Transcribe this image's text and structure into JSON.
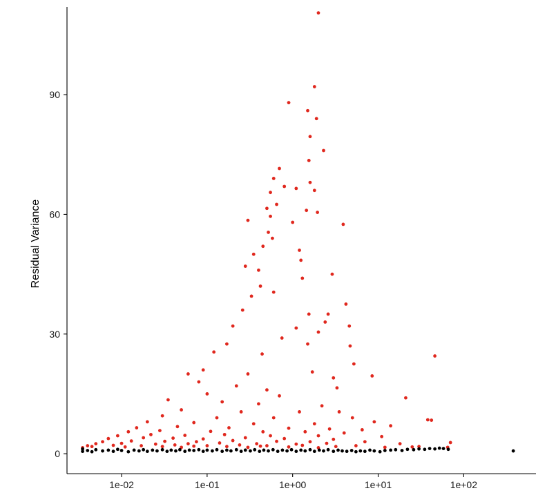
{
  "chart_data": {
    "type": "scatter",
    "title": "",
    "xlabel": "",
    "ylabel": "Residual Variance",
    "x_scale": "log10",
    "xlim": [
      0.0023,
      700
    ],
    "ylim": [
      -5,
      112
    ],
    "x_ticks": [
      0.01,
      0.1,
      1,
      10,
      100
    ],
    "x_tick_labels": [
      "1e-02",
      "1e-01",
      "1e+00",
      "1e+01",
      "1e+02"
    ],
    "y_ticks": [
      0,
      30,
      60,
      90
    ],
    "y_tick_labels": [
      "0",
      "30",
      "60",
      "90"
    ],
    "grid": false,
    "legend": "none",
    "colors": {
      "variable": "#e0281e",
      "non_variable": "#000000"
    },
    "series": [
      {
        "color": "#e0281e",
        "points": [
          [
            2.0,
            110.5
          ],
          [
            1.8,
            92.0
          ],
          [
            0.9,
            88.0
          ],
          [
            1.5,
            86.0
          ],
          [
            1.9,
            84.0
          ],
          [
            1.6,
            79.5
          ],
          [
            2.3,
            76.0
          ],
          [
            1.55,
            73.5
          ],
          [
            0.7,
            71.5
          ],
          [
            0.6,
            69.0
          ],
          [
            1.6,
            68.0
          ],
          [
            0.8,
            67.0
          ],
          [
            1.1,
            66.5
          ],
          [
            1.8,
            66.0
          ],
          [
            0.55,
            65.5
          ],
          [
            0.65,
            62.5
          ],
          [
            0.5,
            61.5
          ],
          [
            1.95,
            60.5
          ],
          [
            1.45,
            61.0
          ],
          [
            0.55,
            59.5
          ],
          [
            0.3,
            58.5
          ],
          [
            1.0,
            58.0
          ],
          [
            3.9,
            57.5
          ],
          [
            0.52,
            55.5
          ],
          [
            0.58,
            54.0
          ],
          [
            0.45,
            52.0
          ],
          [
            1.2,
            51.0
          ],
          [
            0.35,
            50.0
          ],
          [
            1.25,
            48.5
          ],
          [
            0.28,
            47.0
          ],
          [
            0.4,
            46.0
          ],
          [
            2.9,
            45.0
          ],
          [
            1.3,
            44.0
          ],
          [
            0.6,
            40.5
          ],
          [
            0.42,
            42.0
          ],
          [
            0.33,
            39.5
          ],
          [
            0.26,
            36.0
          ],
          [
            4.2,
            37.5
          ],
          [
            1.55,
            35.0
          ],
          [
            2.6,
            35.0
          ],
          [
            2.4,
            33.0
          ],
          [
            4.6,
            32.0
          ],
          [
            0.2,
            32.0
          ],
          [
            1.1,
            31.5
          ],
          [
            2.0,
            30.5
          ],
          [
            0.75,
            29.0
          ],
          [
            0.17,
            27.5
          ],
          [
            1.5,
            27.5
          ],
          [
            4.7,
            27.0
          ],
          [
            0.12,
            25.5
          ],
          [
            0.44,
            25.0
          ],
          [
            46.0,
            24.5
          ],
          [
            5.2,
            22.5
          ],
          [
            0.09,
            21.0
          ],
          [
            0.06,
            20.0
          ],
          [
            0.3,
            20.0
          ],
          [
            1.7,
            20.5
          ],
          [
            8.5,
            19.5
          ],
          [
            3.0,
            19.0
          ],
          [
            0.08,
            18.0
          ],
          [
            0.22,
            17.0
          ],
          [
            0.5,
            16.0
          ],
          [
            3.3,
            16.5
          ],
          [
            0.1,
            15.0
          ],
          [
            0.7,
            14.5
          ],
          [
            21.0,
            14.0
          ],
          [
            0.035,
            13.5
          ],
          [
            0.15,
            13.0
          ],
          [
            0.4,
            12.5
          ],
          [
            2.2,
            12.0
          ],
          [
            0.05,
            11.0
          ],
          [
            0.25,
            10.5
          ],
          [
            1.2,
            10.5
          ],
          [
            3.5,
            10.5
          ],
          [
            0.03,
            9.5
          ],
          [
            0.13,
            9.0
          ],
          [
            0.6,
            9.0
          ],
          [
            5.0,
            9.0
          ],
          [
            38.0,
            8.5
          ],
          [
            42.0,
            8.4
          ],
          [
            9.0,
            8.0
          ],
          [
            0.02,
            8.0
          ],
          [
            0.07,
            7.8
          ],
          [
            0.35,
            7.5
          ],
          [
            1.8,
            7.5
          ],
          [
            14.0,
            7.0
          ],
          [
            0.015,
            6.5
          ],
          [
            0.045,
            6.8
          ],
          [
            0.18,
            6.5
          ],
          [
            0.9,
            6.4
          ],
          [
            2.7,
            6.2
          ],
          [
            6.5,
            6.0
          ],
          [
            0.012,
            5.5
          ],
          [
            0.028,
            5.8
          ],
          [
            0.11,
            5.6
          ],
          [
            0.45,
            5.5
          ],
          [
            1.4,
            5.5
          ],
          [
            4.0,
            5.2
          ],
          [
            0.009,
            4.5
          ],
          [
            0.022,
            4.8
          ],
          [
            0.055,
            4.6
          ],
          [
            0.16,
            4.8
          ],
          [
            0.55,
            4.5
          ],
          [
            2.0,
            4.5
          ],
          [
            11.0,
            4.3
          ],
          [
            0.007,
            3.8
          ],
          [
            0.018,
            4.0
          ],
          [
            0.04,
            3.9
          ],
          [
            0.09,
            3.7
          ],
          [
            0.28,
            4.0
          ],
          [
            0.8,
            3.8
          ],
          [
            3.0,
            3.6
          ],
          [
            0.006,
            3.0
          ],
          [
            0.013,
            3.2
          ],
          [
            0.032,
            3.1
          ],
          [
            0.075,
            3.0
          ],
          [
            0.2,
            3.3
          ],
          [
            0.65,
            3.1
          ],
          [
            1.6,
            3.0
          ],
          [
            7.0,
            3.0
          ],
          [
            0.005,
            2.5
          ],
          [
            0.01,
            2.6
          ],
          [
            0.025,
            2.4
          ],
          [
            0.06,
            2.5
          ],
          [
            0.14,
            2.7
          ],
          [
            0.38,
            2.5
          ],
          [
            1.1,
            2.4
          ],
          [
            2.5,
            2.6
          ],
          [
            18.0,
            2.5
          ],
          [
            0.004,
            2.0
          ],
          [
            0.008,
            2.1
          ],
          [
            0.017,
            2.0
          ],
          [
            0.042,
            2.2
          ],
          [
            0.1,
            2.0
          ],
          [
            0.24,
            2.2
          ],
          [
            0.5,
            2.0
          ],
          [
            1.3,
            2.1
          ],
          [
            5.5,
            2.0
          ],
          [
            0.0045,
            1.8
          ],
          [
            0.011,
            1.7
          ],
          [
            0.03,
            1.8
          ],
          [
            0.07,
            1.9
          ],
          [
            0.17,
            1.8
          ],
          [
            0.42,
            1.9
          ],
          [
            0.9,
            1.7
          ],
          [
            3.2,
            1.8
          ],
          [
            30.0,
            1.8
          ],
          [
            65.0,
            1.6
          ],
          [
            70.0,
            2.8
          ],
          [
            0.0035,
            1.5
          ],
          [
            0.05,
            1.6
          ],
          [
            0.3,
            1.6
          ],
          [
            2.0,
            1.5
          ],
          [
            12.0,
            1.6
          ],
          [
            25.0,
            1.7
          ]
        ]
      },
      {
        "color": "#000000",
        "points": [
          [
            0.0035,
            0.6
          ],
          [
            0.0035,
            1.2
          ],
          [
            0.004,
            0.8
          ],
          [
            0.0045,
            0.5
          ],
          [
            0.005,
            1.0
          ],
          [
            0.006,
            0.7
          ],
          [
            0.007,
            0.9
          ],
          [
            0.008,
            0.6
          ],
          [
            0.009,
            1.1
          ],
          [
            0.01,
            0.8
          ],
          [
            0.012,
            0.5
          ],
          [
            0.014,
            0.9
          ],
          [
            0.016,
            0.7
          ],
          [
            0.018,
            1.0
          ],
          [
            0.02,
            0.6
          ],
          [
            0.023,
            0.9
          ],
          [
            0.026,
            0.7
          ],
          [
            0.03,
            1.0
          ],
          [
            0.034,
            0.6
          ],
          [
            0.038,
            0.9
          ],
          [
            0.043,
            0.7
          ],
          [
            0.048,
            1.0
          ],
          [
            0.055,
            0.6
          ],
          [
            0.062,
            0.9
          ],
          [
            0.07,
            0.8
          ],
          [
            0.08,
            1.0
          ],
          [
            0.09,
            0.6
          ],
          [
            0.1,
            0.9
          ],
          [
            0.115,
            0.7
          ],
          [
            0.13,
            1.0
          ],
          [
            0.15,
            0.6
          ],
          [
            0.17,
            0.9
          ],
          [
            0.19,
            0.7
          ],
          [
            0.22,
            1.0
          ],
          [
            0.25,
            0.6
          ],
          [
            0.28,
            0.9
          ],
          [
            0.32,
            0.7
          ],
          [
            0.36,
            1.0
          ],
          [
            0.41,
            0.6
          ],
          [
            0.46,
            0.9
          ],
          [
            0.52,
            0.7
          ],
          [
            0.59,
            1.0
          ],
          [
            0.67,
            0.6
          ],
          [
            0.76,
            0.9
          ],
          [
            0.86,
            0.7
          ],
          [
            0.97,
            1.0
          ],
          [
            1.1,
            0.6
          ],
          [
            1.25,
            0.9
          ],
          [
            1.4,
            0.7
          ],
          [
            1.6,
            1.0
          ],
          [
            1.8,
            0.6
          ],
          [
            2.05,
            0.9
          ],
          [
            2.3,
            0.7
          ],
          [
            2.6,
            1.0
          ],
          [
            3.0,
            0.6
          ],
          [
            3.4,
            0.9
          ],
          [
            3.8,
            0.7
          ],
          [
            4.3,
            0.6
          ],
          [
            4.9,
            0.8
          ],
          [
            5.5,
            0.5
          ],
          [
            6.2,
            0.7
          ],
          [
            7.0,
            0.6
          ],
          [
            8.0,
            0.9
          ],
          [
            9.0,
            0.7
          ],
          [
            10.5,
            0.5
          ],
          [
            12.0,
            0.8
          ],
          [
            14.0,
            0.9
          ],
          [
            16.0,
            1.0
          ],
          [
            19.0,
            0.8
          ],
          [
            22.0,
            1.1
          ],
          [
            26.0,
            1.0
          ],
          [
            30.0,
            1.2
          ],
          [
            35.0,
            1.1
          ],
          [
            40.0,
            1.3
          ],
          [
            46.0,
            1.2
          ],
          [
            52.0,
            1.4
          ],
          [
            58.0,
            1.3
          ],
          [
            66.0,
            1.1
          ],
          [
            380.0,
            0.7
          ]
        ]
      }
    ]
  }
}
